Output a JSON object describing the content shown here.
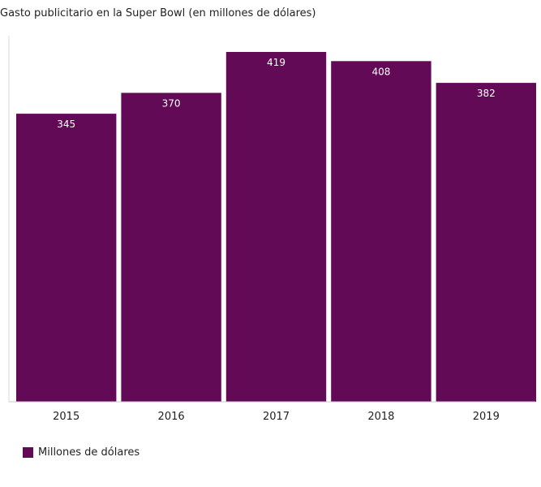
{
  "chart_data": {
    "type": "bar",
    "title": "Gasto publicitario en la Super Bowl (en millones de dólares)",
    "xlabel": "",
    "ylabel": "",
    "categories": [
      "2015",
      "2016",
      "2017",
      "2018",
      "2019"
    ],
    "series": [
      {
        "name": "Millones de dólares",
        "values": [
          345,
          370,
          419,
          408,
          382
        ]
      }
    ],
    "data_labels": [
      "345",
      "370",
      "419",
      "408",
      "382"
    ],
    "ylim": [
      0,
      440
    ],
    "grid": false,
    "legend_position": "bottom-left",
    "bar_color": "#630a57",
    "data_label_color": "#ffffff"
  }
}
